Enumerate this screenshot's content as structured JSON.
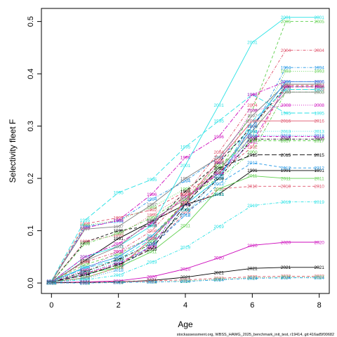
{
  "chart_data": {
    "type": "line",
    "xlabel": "Age",
    "ylabel": "Selectivity fleet F",
    "xlim": [
      -0.3,
      8.3
    ],
    "ylim": [
      -0.02,
      0.525
    ],
    "x_ticks": [
      "0",
      "2",
      "4",
      "6",
      "8"
    ],
    "y_ticks": [
      "0.0",
      "0.1",
      "0.2",
      "0.3",
      "0.4",
      "0.5"
    ],
    "caption": "stockassessment.org, WBSS_HAWG_2025_benchmark_init_test, r19414, git:416ad5f00682",
    "x": [
      0,
      1,
      2,
      3,
      4,
      5,
      6,
      7,
      8
    ],
    "series": [
      {
        "label": "1991",
        "color": "#000000",
        "dash": "solid",
        "values": [
          0.001,
          0.043,
          0.085,
          0.118,
          0.15,
          0.17,
          0.215,
          0.215,
          0.215
        ]
      },
      {
        "label": "1992",
        "color": "#DF536B",
        "dash": "dashed",
        "values": [
          0.003,
          0.113,
          0.125,
          0.14,
          0.175,
          0.21,
          0.26,
          0.378,
          0.378
        ]
      },
      {
        "label": "1993",
        "color": "#61D04F",
        "dash": "dotted",
        "values": [
          0.003,
          0.11,
          0.12,
          0.145,
          0.18,
          0.22,
          0.28,
          0.405,
          0.405
        ]
      },
      {
        "label": "1994",
        "color": "#2297E6",
        "dash": "dotdash",
        "values": [
          0.002,
          0.108,
          0.118,
          0.16,
          0.195,
          0.24,
          0.29,
          0.412,
          0.412
        ]
      },
      {
        "label": "1995",
        "color": "#28E2E5",
        "dash": "longdash",
        "values": [
          0.004,
          0.12,
          0.173,
          0.198,
          0.26,
          0.31,
          0.36,
          0.325,
          0.325
        ]
      },
      {
        "label": "1996",
        "color": "#CD0BBC",
        "dash": "twodash",
        "values": [
          0.003,
          0.105,
          0.12,
          0.17,
          0.24,
          0.28,
          0.36,
          0.385,
          0.385
        ]
      },
      {
        "label": "1997",
        "color": "#808080",
        "dash": "solid",
        "values": [
          0.003,
          0.103,
          0.108,
          0.15,
          0.2,
          0.24,
          0.32,
          0.38,
          0.38
        ]
      },
      {
        "label": "1998",
        "color": "#000000",
        "dash": "dashed",
        "values": [
          0.002,
          0.078,
          0.1,
          0.11,
          0.175,
          0.23,
          0.3,
          0.375,
          0.375
        ]
      },
      {
        "label": "1999",
        "color": "#DF536B",
        "dash": "dotted",
        "values": [
          0.002,
          0.08,
          0.092,
          0.13,
          0.17,
          0.21,
          0.3,
          0.37,
          0.37
        ]
      },
      {
        "label": "2000",
        "color": "#61D04F",
        "dash": "dotdash",
        "values": [
          0.002,
          0.075,
          0.095,
          0.125,
          0.165,
          0.2,
          0.25,
          0.365,
          0.365
        ]
      },
      {
        "label": "2001",
        "color": "#28E2E5",
        "dash": "solid",
        "values": [
          0.002,
          0.05,
          0.07,
          0.11,
          0.225,
          0.34,
          0.46,
          0.508,
          0.508
        ]
      },
      {
        "label": "2002",
        "color": "#CD0BBC",
        "dash": "twodash",
        "values": [
          0.002,
          0.05,
          0.075,
          0.115,
          0.165,
          0.21,
          0.27,
          0.375,
          0.375
        ]
      },
      {
        "label": "2003",
        "color": "#808080",
        "dash": "solid",
        "values": [
          0.002,
          0.042,
          0.07,
          0.12,
          0.16,
          0.215,
          0.29,
          0.365,
          0.365
        ]
      },
      {
        "label": "2004",
        "color": "#DF536B",
        "dash": "dotdash",
        "values": [
          0.002,
          0.04,
          0.06,
          0.1,
          0.17,
          0.25,
          0.34,
          0.445,
          0.445
        ]
      },
      {
        "label": "2005",
        "color": "#61D04F",
        "dash": "dashed",
        "values": [
          0.003,
          0.035,
          0.055,
          0.09,
          0.155,
          0.21,
          0.33,
          0.5,
          0.5
        ]
      },
      {
        "label": "2006",
        "color": "#2297E6",
        "dash": "solid",
        "values": [
          0.003,
          0.03,
          0.05,
          0.09,
          0.15,
          0.2,
          0.3,
          0.385,
          0.385
        ]
      },
      {
        "label": "2007",
        "color": "#28E2E5",
        "dash": "longdash",
        "values": [
          0.003,
          0.028,
          0.045,
          0.085,
          0.15,
          0.2,
          0.31,
          0.37,
          0.37
        ]
      },
      {
        "label": "2008",
        "color": "#CD0BBC",
        "dash": "dotted",
        "values": [
          0.003,
          0.025,
          0.06,
          0.085,
          0.15,
          0.23,
          0.33,
          0.34,
          0.34
        ]
      },
      {
        "label": "2009",
        "color": "#000000",
        "dash": "dotdash",
        "values": [
          0.002,
          0.022,
          0.045,
          0.075,
          0.14,
          0.2,
          0.275,
          0.275,
          0.275
        ]
      },
      {
        "label": "2010",
        "color": "#DF536B",
        "dash": "dashed",
        "values": [
          0.002,
          0.018,
          0.035,
          0.068,
          0.135,
          0.18,
          0.185,
          0.185,
          0.185
        ]
      },
      {
        "label": "2011",
        "color": "#61D04F",
        "dash": "solid",
        "values": [
          0.002,
          0.018,
          0.03,
          0.06,
          0.11,
          0.18,
          0.205,
          0.2,
          0.2
        ]
      },
      {
        "label": "2012",
        "color": "#2297E6",
        "dash": "dashed",
        "values": [
          0.002,
          0.015,
          0.035,
          0.07,
          0.13,
          0.19,
          0.23,
          0.22,
          0.22
        ]
      },
      {
        "label": "2013",
        "color": "#28E2E5",
        "dash": "dotted",
        "values": [
          0.002,
          0.02,
          0.04,
          0.08,
          0.14,
          0.17,
          0.29,
          0.29,
          0.29
        ]
      },
      {
        "label": "2014",
        "color": "#CD0BBC",
        "dash": "dotdash",
        "values": [
          0.002,
          0.018,
          0.038,
          0.07,
          0.16,
          0.21,
          0.28,
          0.28,
          0.28
        ]
      },
      {
        "label": "2015",
        "color": "#000000",
        "dash": "longdash",
        "values": [
          0.002,
          0.015,
          0.035,
          0.065,
          0.15,
          0.22,
          0.245,
          0.245,
          0.245
        ]
      },
      {
        "label": "2016",
        "color": "#DF536B",
        "dash": "solid",
        "values": [
          0.002,
          0.01,
          0.03,
          0.085,
          0.155,
          0.235,
          0.31,
          0.31,
          0.31
        ]
      },
      {
        "label": "2017",
        "color": "#61D04F",
        "dash": "dashed",
        "values": [
          0.002,
          0.01,
          0.03,
          0.08,
          0.16,
          0.225,
          0.272,
          0.272,
          0.272
        ]
      },
      {
        "label": "2018",
        "color": "#2297E6",
        "dash": "dotted",
        "values": [
          0.002,
          0.008,
          0.025,
          0.075,
          0.13,
          0.205,
          0.282,
          0.282,
          0.282
        ]
      },
      {
        "label": "2019",
        "color": "#28E2E5",
        "dash": "dotdash",
        "values": [
          0.002,
          0.006,
          0.015,
          0.04,
          0.068,
          0.108,
          0.148,
          0.155,
          0.155
        ]
      },
      {
        "label": "2020",
        "color": "#CD0BBC",
        "dash": "solid",
        "values": [
          0.001,
          0.002,
          0.004,
          0.012,
          0.027,
          0.048,
          0.072,
          0.078,
          0.078
        ]
      },
      {
        "label": "2021",
        "color": "#000000",
        "dash": "solid",
        "values": [
          0.001,
          0.001,
          0.002,
          0.005,
          0.011,
          0.02,
          0.028,
          0.03,
          0.03
        ]
      },
      {
        "label": "2022",
        "color": "#DF536B",
        "dash": "dashed",
        "values": [
          0.0,
          0.001,
          0.002,
          0.004,
          0.006,
          0.009,
          0.012,
          0.013,
          0.013
        ]
      },
      {
        "label": "2023",
        "color": "#61D04F",
        "dash": "dotted",
        "values": [
          0.0,
          0.0,
          0.001,
          0.002,
          0.004,
          0.007,
          0.01,
          0.011,
          0.011
        ]
      },
      {
        "label": "2024",
        "color": "#2297E6",
        "dash": "dotdash",
        "values": [
          0.0,
          0.0,
          0.001,
          0.002,
          0.003,
          0.006,
          0.009,
          0.01,
          0.01
        ]
      }
    ]
  }
}
